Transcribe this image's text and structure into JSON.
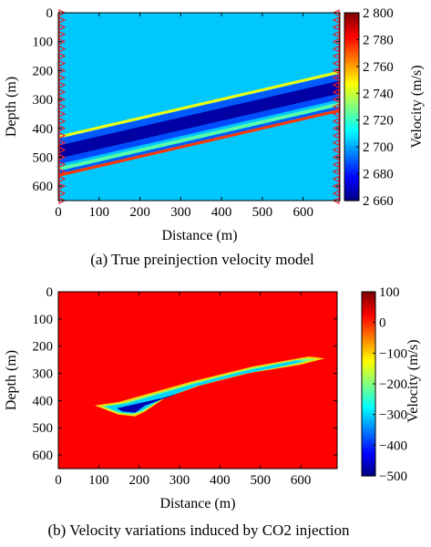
{
  "chart_data": [
    {
      "type": "heatmap",
      "caption": "(a) True preinjection velocity model",
      "xlabel": "Distance (m)",
      "ylabel": "Depth (m)",
      "colorbar_label": "Velocity (m/s)",
      "xlim": [
        0,
        690
      ],
      "ylim": [
        0,
        650
      ],
      "xticks": [
        0,
        100,
        200,
        300,
        400,
        500,
        600
      ],
      "yticks": [
        0,
        100,
        200,
        300,
        400,
        500,
        600
      ],
      "clim": [
        2660,
        2800
      ],
      "colorbar_ticks": [
        2660,
        2680,
        2700,
        2720,
        2740,
        2760,
        2780,
        2800
      ],
      "colorbar_tick_labels": [
        "2 660",
        "2 680",
        "2 700",
        "2 720",
        "2 740",
        "2 760",
        "2 780",
        "2 800"
      ],
      "colormap": "jet",
      "background_value": 2705,
      "layers": [
        {
          "left_depth": 425,
          "right_depth": 200,
          "thickness": 10,
          "value": 2745
        },
        {
          "left_depth": 436,
          "right_depth": 211,
          "thickness": 25,
          "value": 2690
        },
        {
          "left_depth": 460,
          "right_depth": 235,
          "thickness": 45,
          "value": 2665
        },
        {
          "left_depth": 505,
          "right_depth": 280,
          "thickness": 20,
          "value": 2688
        },
        {
          "left_depth": 525,
          "right_depth": 300,
          "thickness": 8,
          "value": 2705
        },
        {
          "left_depth": 535,
          "right_depth": 310,
          "thickness": 12,
          "value": 2725
        },
        {
          "left_depth": 548,
          "right_depth": 323,
          "thickness": 10,
          "value": 2690
        },
        {
          "left_depth": 558,
          "right_depth": 333,
          "thickness": 10,
          "value": 2775
        }
      ],
      "source_receiver_depths": [
        0,
        25,
        50,
        75,
        100,
        125,
        150,
        175,
        200,
        225,
        250,
        275,
        300,
        325,
        350,
        375,
        400,
        425,
        450,
        475,
        500,
        525,
        550,
        575,
        600,
        625,
        650
      ],
      "source_receiver_color": "#e8202a"
    },
    {
      "type": "heatmap",
      "caption": "(b) Velocity variations induced by CO2 injection",
      "xlabel": "Distance (m)",
      "ylabel": "Depth (m)",
      "colorbar_label": "Velocity (m/s)",
      "xlim": [
        0,
        690
      ],
      "ylim": [
        0,
        650
      ],
      "xticks": [
        0,
        100,
        200,
        300,
        400,
        500,
        600
      ],
      "yticks": [
        0,
        100,
        200,
        300,
        400,
        500,
        600
      ],
      "clim": [
        -500,
        100
      ],
      "colorbar_ticks": [
        100,
        0,
        -100,
        -200,
        -300,
        -400,
        -500
      ],
      "colorbar_tick_labels": [
        "100",
        "0",
        "−100",
        "−200",
        "−300",
        "−400",
        "−500"
      ],
      "colormap": "jet",
      "background_value": 25,
      "plume_regions": [
        {
          "value": -100,
          "points": [
            [
              90,
              418
            ],
            [
              150,
              405
            ],
            [
              330,
              330
            ],
            [
              480,
              275
            ],
            [
              620,
              238
            ],
            [
              660,
              245
            ],
            [
              600,
              268
            ],
            [
              470,
              300
            ],
            [
              350,
              345
            ],
            [
              265,
              390
            ],
            [
              215,
              440
            ],
            [
              190,
              458
            ],
            [
              150,
              452
            ],
            [
              110,
              430
            ]
          ]
        },
        {
          "value": -200,
          "points": [
            [
              105,
              420
            ],
            [
              160,
              408
            ],
            [
              340,
              332
            ],
            [
              480,
              280
            ],
            [
              610,
              245
            ],
            [
              640,
              248
            ],
            [
              590,
              265
            ],
            [
              460,
              302
            ],
            [
              345,
              345
            ],
            [
              260,
              392
            ],
            [
              210,
              440
            ],
            [
              185,
              452
            ],
            [
              150,
              447
            ],
            [
              120,
              430
            ]
          ]
        },
        {
          "value": -300,
          "points": [
            [
              115,
              422
            ],
            [
              170,
              410
            ],
            [
              345,
              335
            ],
            [
              470,
              288
            ],
            [
              590,
              252
            ],
            [
              610,
              255
            ],
            [
              560,
              272
            ],
            [
              450,
              305
            ],
            [
              340,
              348
            ],
            [
              255,
              395
            ],
            [
              205,
              438
            ],
            [
              182,
              448
            ],
            [
              152,
              443
            ],
            [
              128,
              430
            ]
          ]
        },
        {
          "value": -470,
          "points": [
            [
              145,
              428
            ],
            [
              260,
              390
            ],
            [
              300,
              372
            ],
            [
              215,
              418
            ],
            [
              190,
              445
            ],
            [
              158,
              440
            ]
          ]
        }
      ]
    }
  ]
}
